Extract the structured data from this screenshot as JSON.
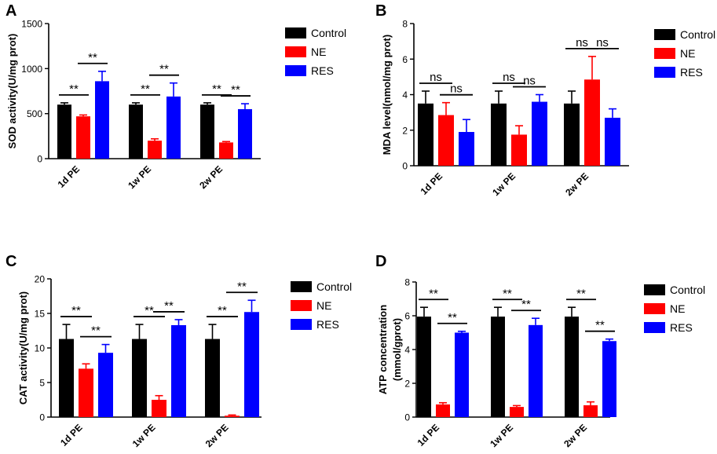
{
  "chart_data": [
    {
      "panel": "A",
      "type": "bar",
      "ylabel": "SOD activity(U/mg prot)",
      "ylim": [
        0,
        1500
      ],
      "yticks": [
        0,
        500,
        1000,
        1500
      ],
      "categories": [
        "1d PE",
        "1w PE",
        "2w PE"
      ],
      "series": [
        {
          "name": "Control",
          "color": "#000000",
          "values": [
            600,
            600,
            600
          ],
          "errors": [
            20,
            20,
            20
          ]
        },
        {
          "name": "NE",
          "color": "#ff0000",
          "values": [
            470,
            200,
            180
          ],
          "errors": [
            15,
            20,
            10
          ]
        },
        {
          "name": "RES",
          "color": "#0000ff",
          "values": [
            860,
            690,
            550
          ],
          "errors": [
            110,
            150,
            60
          ]
        }
      ],
      "annotations": [
        {
          "category": 0,
          "from": 0,
          "to": 1,
          "label": "**"
        },
        {
          "category": 0,
          "from": 1,
          "to": 2,
          "label": "**"
        },
        {
          "category": 1,
          "from": 0,
          "to": 1,
          "label": "**"
        },
        {
          "category": 1,
          "from": 1,
          "to": 2,
          "label": "**"
        },
        {
          "category": 2,
          "from": 0,
          "to": 1,
          "label": "**"
        },
        {
          "category": 2,
          "from": 1,
          "to": 2,
          "label": "**"
        }
      ]
    },
    {
      "panel": "B",
      "type": "bar",
      "ylabel": "MDA level(nmol/mg prot)",
      "ylim": [
        0,
        8
      ],
      "yticks": [
        0,
        2,
        4,
        6,
        8
      ],
      "categories": [
        "1d PE",
        "1w PE",
        "2w PE"
      ],
      "series": [
        {
          "name": "Control",
          "color": "#000000",
          "values": [
            3.5,
            3.5,
            3.5
          ],
          "errors": [
            0.7,
            0.7,
            0.7
          ]
        },
        {
          "name": "NE",
          "color": "#ff0000",
          "values": [
            2.85,
            1.75,
            4.85
          ],
          "errors": [
            0.7,
            0.5,
            1.3
          ]
        },
        {
          "name": "RES",
          "color": "#0000ff",
          "values": [
            1.9,
            3.6,
            2.7
          ],
          "errors": [
            0.7,
            0.4,
            0.5
          ]
        }
      ],
      "annotations": [
        {
          "category": 0,
          "from": 0,
          "to": 1,
          "label": "ns"
        },
        {
          "category": 0,
          "from": 1,
          "to": 2,
          "label": "ns"
        },
        {
          "category": 1,
          "from": 0,
          "to": 1,
          "label": "ns"
        },
        {
          "category": 1,
          "from": 1,
          "to": 2,
          "label": "ns"
        },
        {
          "category": 2,
          "from": 0,
          "to": 1,
          "label": "ns"
        },
        {
          "category": 2,
          "from": 1,
          "to": 2,
          "label": "ns"
        }
      ]
    },
    {
      "panel": "C",
      "type": "bar",
      "ylabel": "CAT activity(U/mg prot)",
      "ylim": [
        0,
        20
      ],
      "yticks": [
        0,
        5,
        10,
        15,
        20
      ],
      "categories": [
        "1d PE",
        "1w PE",
        "2w PE"
      ],
      "series": [
        {
          "name": "Control",
          "color": "#000000",
          "values": [
            11.3,
            11.3,
            11.3
          ],
          "errors": [
            2.1,
            2.1,
            2.1
          ]
        },
        {
          "name": "NE",
          "color": "#ff0000",
          "values": [
            7.0,
            2.5,
            0.2
          ],
          "errors": [
            0.7,
            0.6,
            0.1
          ]
        },
        {
          "name": "RES",
          "color": "#0000ff",
          "values": [
            9.3,
            13.3,
            15.2
          ],
          "errors": [
            1.2,
            0.8,
            1.7
          ]
        }
      ],
      "annotations": [
        {
          "category": 0,
          "from": 0,
          "to": 1,
          "label": "**"
        },
        {
          "category": 0,
          "from": 1,
          "to": 2,
          "label": "**"
        },
        {
          "category": 1,
          "from": 0,
          "to": 1,
          "label": "**"
        },
        {
          "category": 1,
          "from": 1,
          "to": 2,
          "label": "**"
        },
        {
          "category": 2,
          "from": 0,
          "to": 1,
          "label": "**"
        },
        {
          "category": 2,
          "from": 1,
          "to": 2,
          "label": "**"
        }
      ]
    },
    {
      "panel": "D",
      "type": "bar",
      "ylabel": "ATP concentration",
      "ylabel2": "(mmol/gprot)",
      "ylim": [
        0,
        8
      ],
      "yticks": [
        0,
        2,
        4,
        6,
        8
      ],
      "categories": [
        "1d PE",
        "1w PE",
        "2w PE"
      ],
      "series": [
        {
          "name": "Control",
          "color": "#000000",
          "values": [
            5.95,
            5.95,
            5.95
          ],
          "errors": [
            0.55,
            0.55,
            0.55
          ]
        },
        {
          "name": "NE",
          "color": "#ff0000",
          "values": [
            0.75,
            0.6,
            0.7
          ],
          "errors": [
            0.1,
            0.08,
            0.2
          ]
        },
        {
          "name": "RES",
          "color": "#0000ff",
          "values": [
            5.0,
            5.45,
            4.5
          ],
          "errors": [
            0.08,
            0.4,
            0.12
          ]
        }
      ],
      "annotations": [
        {
          "category": 0,
          "from": 0,
          "to": 1,
          "label": "**"
        },
        {
          "category": 0,
          "from": 1,
          "to": 2,
          "label": "**"
        },
        {
          "category": 1,
          "from": 0,
          "to": 1,
          "label": "**"
        },
        {
          "category": 1,
          "from": 1,
          "to": 2,
          "label": "**"
        },
        {
          "category": 2,
          "from": 0,
          "to": 1,
          "label": "**"
        },
        {
          "category": 2,
          "from": 1,
          "to": 2,
          "label": "**"
        }
      ]
    }
  ]
}
